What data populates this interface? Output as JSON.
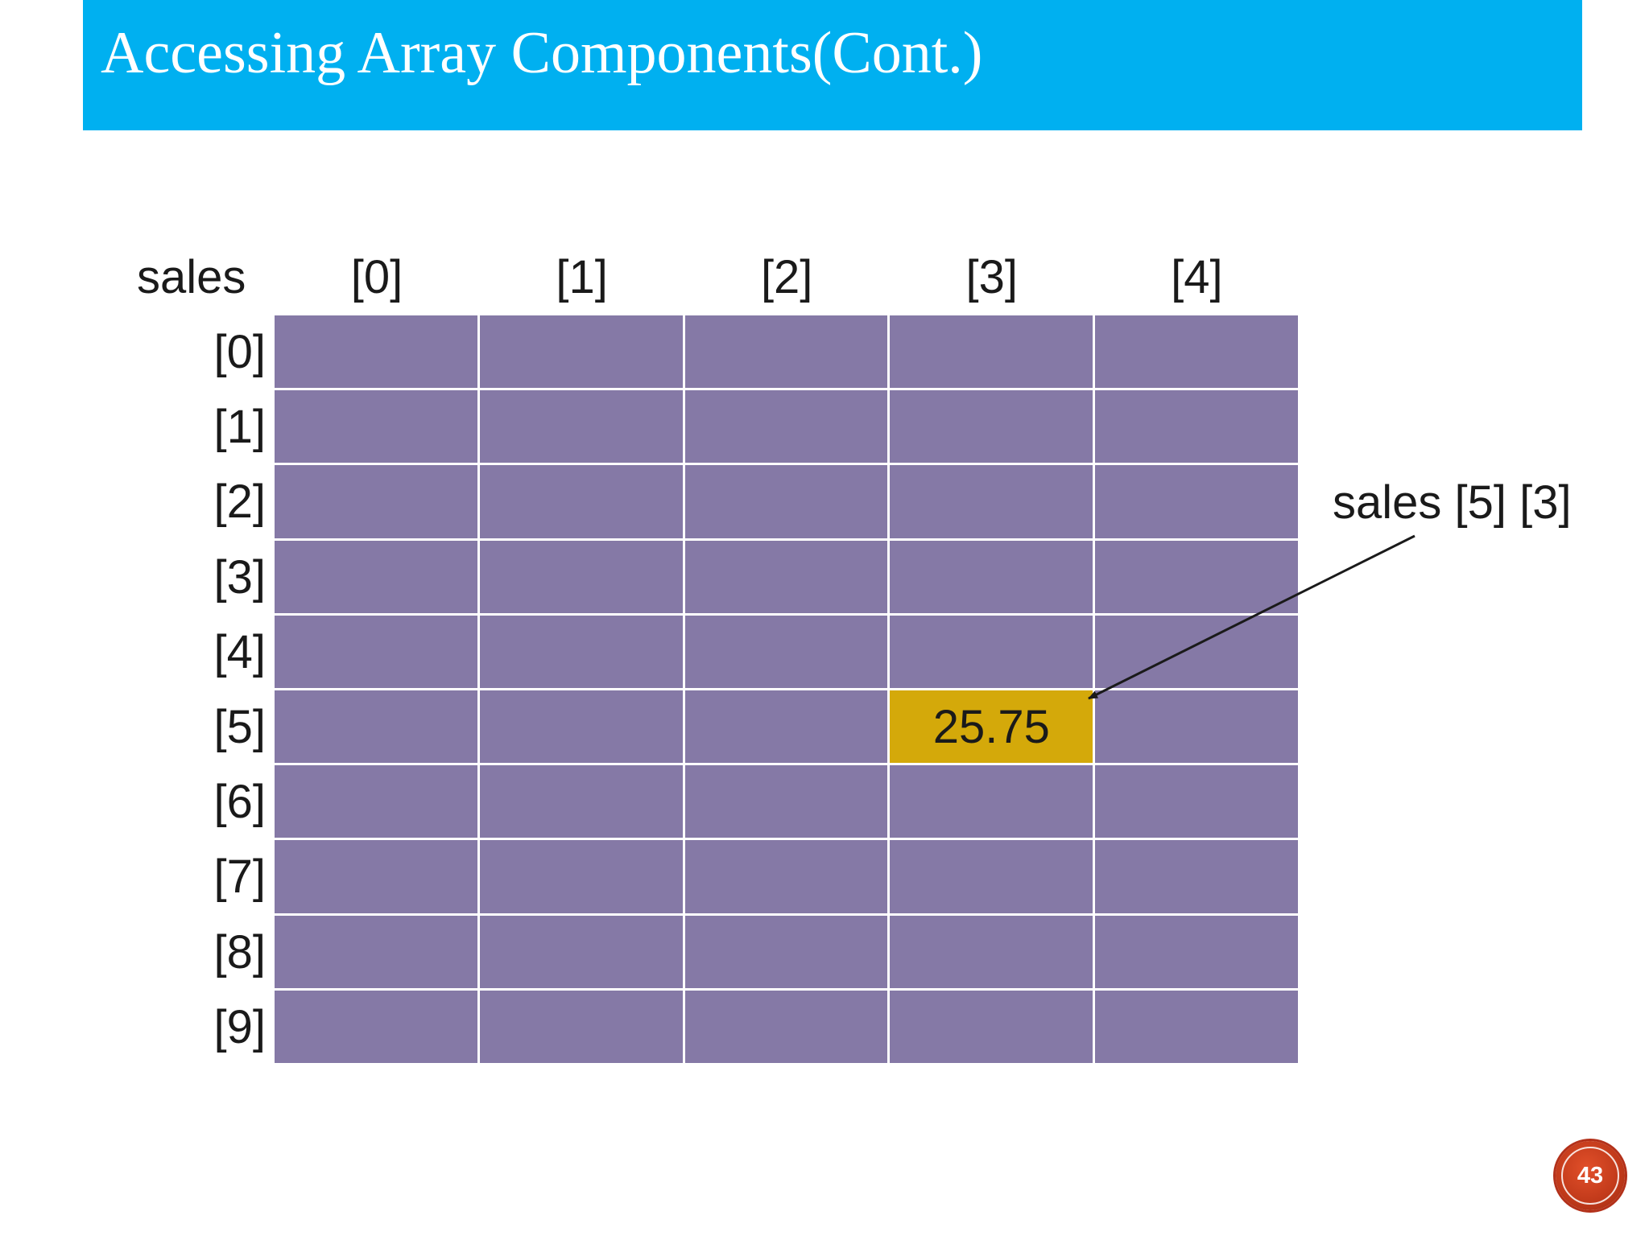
{
  "slide": {
    "title": "Accessing Array Components(Cont.)",
    "page_number": "43"
  },
  "diagram": {
    "array_name": "sales",
    "column_indices": [
      "[0]",
      "[1]",
      "[2]",
      "[3]",
      "[4]"
    ],
    "row_indices": [
      "[0]",
      "[1]",
      "[2]",
      "[3]",
      "[4]",
      "[5]",
      "[6]",
      "[7]",
      "[8]",
      "[9]"
    ],
    "rows": 10,
    "columns": 5,
    "highlighted_cell": {
      "row": 5,
      "column": 3,
      "value": "25.75"
    },
    "callout_label": "sales [5] [3]"
  },
  "colors": {
    "title_bar": "#00b0f0",
    "cell": "#8579a6",
    "highlight": "#d4a90a",
    "badge": "#c0391a"
  }
}
